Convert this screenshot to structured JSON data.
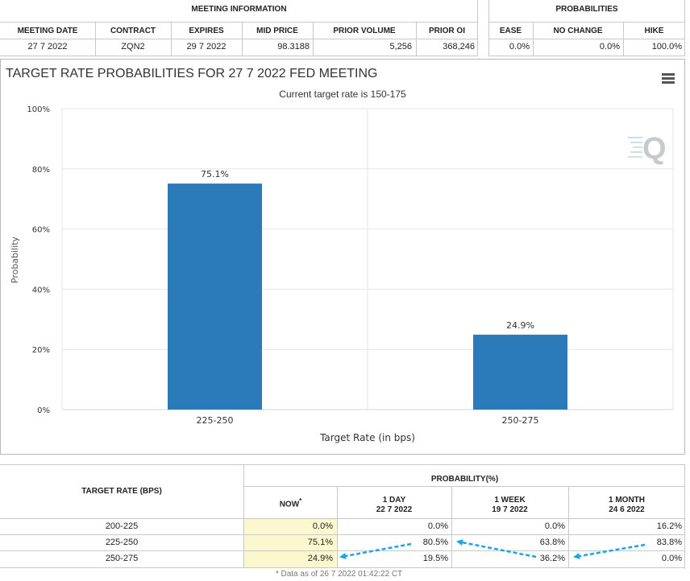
{
  "meeting_info": {
    "section_title": "MEETING INFORMATION",
    "headers": [
      "MEETING DATE",
      "CONTRACT",
      "EXPIRES",
      "MID PRICE",
      "PRIOR VOLUME",
      "PRIOR OI"
    ],
    "values": [
      "27 7 2022",
      "ZQN2",
      "29 7 2022",
      "98.3188",
      "5,256",
      "368,246"
    ]
  },
  "probabilities": {
    "section_title": "PROBABILITIES",
    "headers": [
      "EASE",
      "NO CHANGE",
      "HIKE"
    ],
    "values": [
      "0.0%",
      "0.0%",
      "100.0%"
    ]
  },
  "chart": {
    "title": "TARGET RATE PROBABILITIES FOR 27 7 2022 FED MEETING",
    "subtitle": "Current target rate is 150-175",
    "menu_icon": "hamburger-menu-icon",
    "watermark_icon": "q-logo-icon",
    "bar_color": "#2b7bba"
  },
  "chart_data": {
    "type": "bar",
    "title": "TARGET RATE PROBABILITIES FOR 27 7 2022 FED MEETING",
    "subtitle": "Current target rate is 150-175",
    "categories": [
      "225-250",
      "250-275"
    ],
    "values": [
      75.1,
      24.9
    ],
    "data_labels": [
      "75.1%",
      "24.9%"
    ],
    "xlabel": "Target Rate (in bps)",
    "ylabel": "Probability",
    "ylim": [
      0,
      100
    ],
    "yticks": [
      "0%",
      "20%",
      "40%",
      "60%",
      "80%",
      "100%"
    ],
    "grid": true
  },
  "bottom_table": {
    "target_rate_header": "TARGET RATE (BPS)",
    "probability_header": "PROBABILITY(%)",
    "columns": [
      {
        "label": "NOW",
        "sub": "",
        "marker": "*"
      },
      {
        "label": "1 DAY",
        "sub": "22 7 2022"
      },
      {
        "label": "1 WEEK",
        "sub": "19 7 2022"
      },
      {
        "label": "1 MONTH",
        "sub": "24 6 2022"
      }
    ],
    "rows": [
      {
        "rate": "200-225",
        "values": [
          "0.0%",
          "0.0%",
          "0.0%",
          "16.2%"
        ]
      },
      {
        "rate": "225-250",
        "values": [
          "75.1%",
          "80.5%",
          "63.8%",
          "83.8%"
        ]
      },
      {
        "rate": "250-275",
        "values": [
          "24.9%",
          "19.5%",
          "36.2%",
          "0.0%"
        ]
      }
    ],
    "footnote": "* Data as of 26 7 2022 01:42:22 CT",
    "arrow_color": "#1aa3e8"
  }
}
